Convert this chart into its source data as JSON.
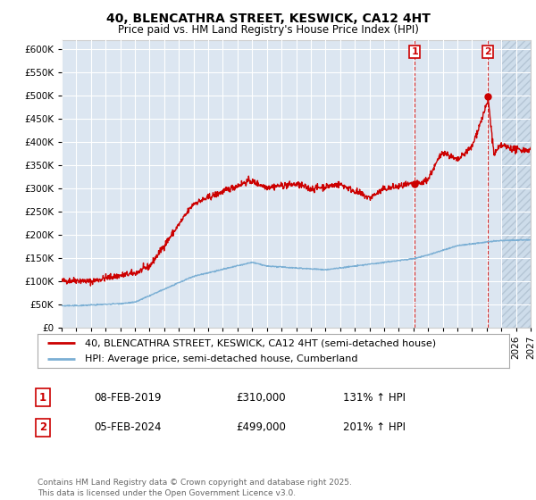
{
  "title": "40, BLENCATHRA STREET, KESWICK, CA12 4HT",
  "subtitle": "Price paid vs. HM Land Registry's House Price Index (HPI)",
  "ylim": [
    0,
    620000
  ],
  "yticks": [
    0,
    50000,
    100000,
    150000,
    200000,
    250000,
    300000,
    350000,
    400000,
    450000,
    500000,
    550000,
    600000
  ],
  "xlim": [
    1995,
    2027
  ],
  "background_color": "#ffffff",
  "plot_bg_color": "#dce6f1",
  "hatch_bg_color": "#c8d8e8",
  "grid_color": "#ffffff",
  "red_color": "#cc0000",
  "blue_color": "#7bafd4",
  "marker1_x": 2019.08,
  "marker2_x": 2024.08,
  "legend_line1": "40, BLENCATHRA STREET, KESWICK, CA12 4HT (semi-detached house)",
  "legend_line2": "HPI: Average price, semi-detached house, Cumberland",
  "table_row1": [
    "1",
    "08-FEB-2019",
    "£310,000",
    "131% ↑ HPI"
  ],
  "table_row2": [
    "2",
    "05-FEB-2024",
    "£499,000",
    "201% ↑ HPI"
  ],
  "footer": "Contains HM Land Registry data © Crown copyright and database right 2025.\nThis data is licensed under the Open Government Licence v3.0.",
  "title_fontsize": 10,
  "subtitle_fontsize": 8.5,
  "tick_fontsize": 7.5,
  "legend_fontsize": 8,
  "table_fontsize": 8.5,
  "footer_fontsize": 6.5
}
